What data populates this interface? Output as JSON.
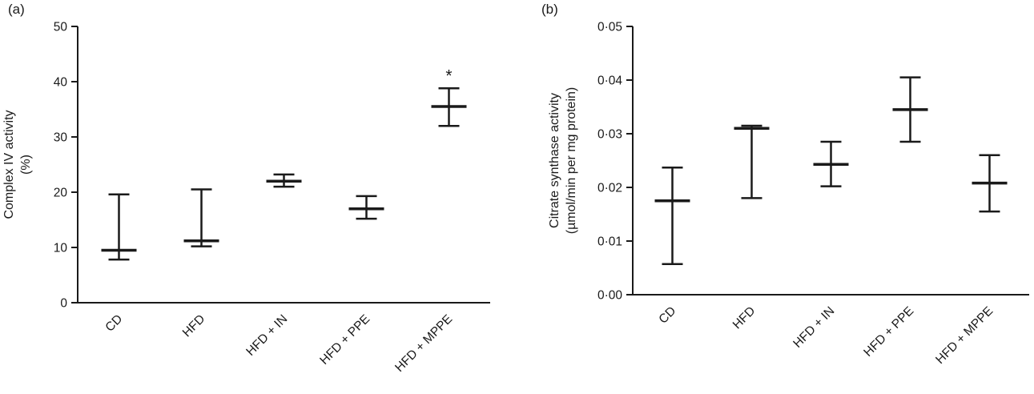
{
  "figure": {
    "background": "#ffffff",
    "line_color": "#1a1a1a"
  },
  "panels": [
    {
      "label": "(a)"
    },
    {
      "label": "(b)"
    }
  ],
  "chart_data": [
    {
      "type": "errorbar",
      "panel": "a",
      "title": "",
      "ylabel_lines": [
        "Complex IV activity",
        "(%)"
      ],
      "xlabel": "",
      "ylim": [
        0,
        50
      ],
      "yticks": [
        0,
        10,
        20,
        30,
        40,
        50
      ],
      "ytick_labels": [
        "0",
        "10",
        "20",
        "30",
        "40",
        "50"
      ],
      "categories": [
        "CD",
        "HFD",
        "HFD + IN",
        "HFD + PPE",
        "HFD + MPPE"
      ],
      "series": [
        {
          "name": "mean",
          "values": [
            9.5,
            11.2,
            22.0,
            17.0,
            35.5
          ]
        },
        {
          "name": "upper_whisker",
          "values": [
            19.6,
            20.5,
            23.2,
            19.3,
            38.8
          ]
        },
        {
          "name": "lower_whisker",
          "values": [
            7.8,
            10.2,
            21.0,
            15.2,
            32.0
          ]
        }
      ],
      "annotations": [
        {
          "category": "HFD + MPPE",
          "category_index": 4,
          "text": "*"
        }
      ],
      "grid": false,
      "legend": null
    },
    {
      "type": "errorbar",
      "panel": "b",
      "title": "",
      "ylabel_lines": [
        "Citrate synthase activity",
        "(µmol/min per mg protein)"
      ],
      "xlabel": "",
      "ylim": [
        0,
        0.05
      ],
      "yticks": [
        0,
        0.01,
        0.02,
        0.03,
        0.04,
        0.05
      ],
      "ytick_labels": [
        "0·00",
        "0·01",
        "0·02",
        "0·03",
        "0·04",
        "0·05"
      ],
      "categories": [
        "CD",
        "HFD",
        "HFD + IN",
        "HFD + PPE",
        "HFD + MPPE"
      ],
      "series": [
        {
          "name": "mean",
          "values": [
            0.0175,
            0.031,
            0.0243,
            0.0345,
            0.0208
          ]
        },
        {
          "name": "upper_whisker",
          "values": [
            0.0237,
            0.0315,
            0.0285,
            0.0405,
            0.026
          ]
        },
        {
          "name": "lower_whisker",
          "values": [
            0.0057,
            0.018,
            0.0202,
            0.0285,
            0.0155
          ]
        }
      ],
      "annotations": [],
      "grid": false,
      "legend": null
    }
  ]
}
